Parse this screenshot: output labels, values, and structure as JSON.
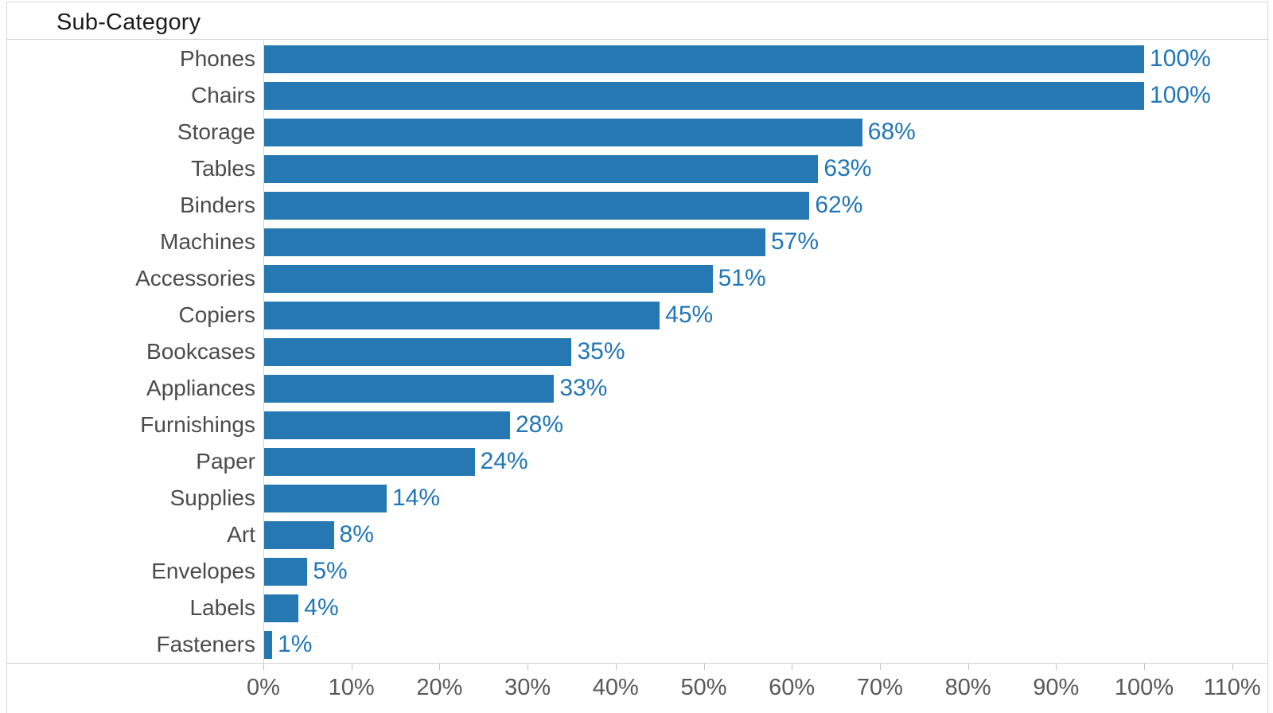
{
  "chart_data": {
    "type": "bar",
    "orientation": "horizontal",
    "title": "Sub-Category",
    "categories": [
      "Phones",
      "Chairs",
      "Storage",
      "Tables",
      "Binders",
      "Machines",
      "Accessories",
      "Copiers",
      "Bookcases",
      "Appliances",
      "Furnishings",
      "Paper",
      "Supplies",
      "Art",
      "Envelopes",
      "Labels",
      "Fasteners"
    ],
    "values": [
      100,
      100,
      68,
      63,
      62,
      57,
      51,
      45,
      35,
      33,
      28,
      24,
      14,
      8,
      5,
      4,
      1
    ],
    "bar_labels": [
      "100%",
      "100%",
      "68%",
      "63%",
      "62%",
      "57%",
      "51%",
      "45%",
      "35%",
      "33%",
      "28%",
      "24%",
      "14%",
      "8%",
      "5%",
      "4%",
      "1%"
    ],
    "xlabel": "",
    "ylabel": "Sub-Category",
    "xlim": [
      0,
      110
    ],
    "x_tick_values": [
      0,
      10,
      20,
      30,
      40,
      50,
      60,
      70,
      80,
      90,
      100,
      110
    ],
    "x_tick_labels": [
      "0%",
      "10%",
      "20%",
      "30%",
      "40%",
      "50%",
      "60%",
      "70%",
      "80%",
      "90%",
      "100%",
      "110%"
    ],
    "bar_color": "#2678b2",
    "value_label_color": "#2176b5",
    "category_label_color": "#4b4b4b",
    "axis_label_color": "#595959",
    "grid": "off",
    "legend_position": "none"
  }
}
